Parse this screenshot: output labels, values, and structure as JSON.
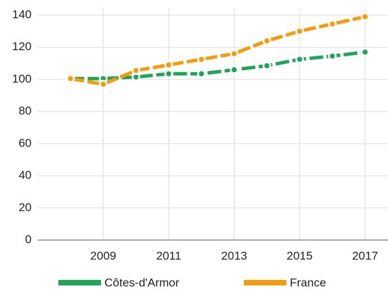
{
  "chart_data": {
    "type": "line",
    "x": [
      2008,
      2009,
      2010,
      2011,
      2012,
      2013,
      2014,
      2015,
      2016,
      2017
    ],
    "series": [
      {
        "name": "Côtes-d'Armor",
        "color": "#1fa45a",
        "values": [
          100.5,
          100.5,
          101.5,
          103.5,
          103.5,
          106,
          108.5,
          112.5,
          114.5,
          117
        ]
      },
      {
        "name": "France",
        "color": "#f59c0b",
        "values": [
          100.5,
          97,
          105.5,
          109,
          112.5,
          116,
          124,
          130,
          134.5,
          139
        ]
      }
    ],
    "xlim": [
      2007,
      2017.7
    ],
    "xticks": [
      2009,
      2011,
      2013,
      2015,
      2017
    ],
    "ylim": [
      0,
      140
    ],
    "yticks": [
      0,
      20,
      40,
      60,
      80,
      100,
      120,
      140
    ],
    "grid": true,
    "legend": "bottom"
  }
}
